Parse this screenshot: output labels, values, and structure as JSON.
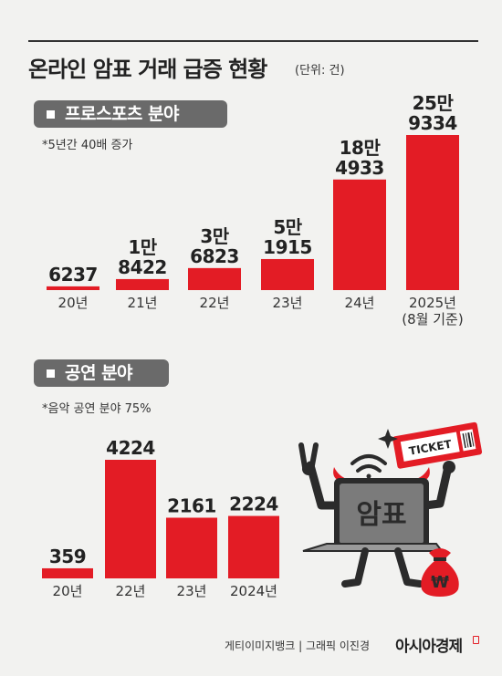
{
  "header": {
    "title": "온라인 암표 거래 급증 현황",
    "unit": "(단위: 건)"
  },
  "sections": {
    "sports": {
      "label": "프로스포츠 분야",
      "note": "*5년간 40배 증가"
    },
    "performance": {
      "label": "공연 분야",
      "note": "*음악 공연 분야 75%"
    }
  },
  "chart_data": [
    {
      "type": "bar",
      "title": "프로스포츠 분야",
      "categories": [
        "20년",
        "21년",
        "22년",
        "23년",
        "24년",
        "2025년 (8월 기준)"
      ],
      "category_lines": [
        [
          "20년"
        ],
        [
          "21년"
        ],
        [
          "22년"
        ],
        [
          "23년"
        ],
        [
          "24년"
        ],
        [
          "2025년",
          "(8월 기준)"
        ]
      ],
      "values": [
        6237,
        18422,
        36823,
        51915,
        184933,
        259334
      ],
      "value_labels": [
        [
          "6237"
        ],
        [
          "1만",
          "8422"
        ],
        [
          "3만",
          "6823"
        ],
        [
          "5만",
          "1915"
        ],
        [
          "18만",
          "4933"
        ],
        [
          "25만",
          "9334"
        ]
      ],
      "color": "#e31c25"
    },
    {
      "type": "bar",
      "title": "공연 분야",
      "categories": [
        "20년",
        "22년",
        "23년",
        "2024년"
      ],
      "category_lines": [
        [
          "20년"
        ],
        [
          "22년"
        ],
        [
          "23년"
        ],
        [
          "2024년"
        ]
      ],
      "values": [
        359,
        4224,
        2161,
        2224
      ],
      "value_labels": [
        [
          "359"
        ],
        [
          "4224"
        ],
        [
          "2161"
        ],
        [
          "2224"
        ]
      ],
      "color": "#e31c25"
    }
  ],
  "illustration": {
    "ticket_text": "TICKET",
    "screen_text": "암표",
    "bag_symbol": "₩",
    "colors": {
      "red": "#e31c25",
      "laptop": "#7b7b7b",
      "dark": "#2b2b2b"
    }
  },
  "footer": {
    "source": "게티이미지뱅크  |  그래픽 이진경",
    "brand": "아시아경제"
  }
}
